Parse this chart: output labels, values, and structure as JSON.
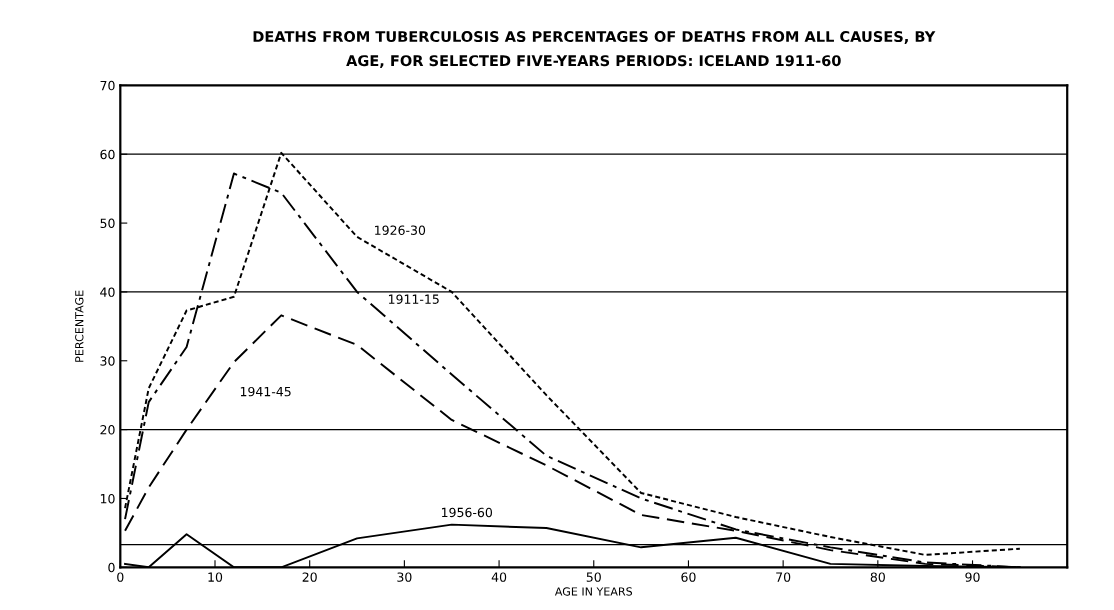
{
  "chart_data": {
    "type": "line",
    "title": "DEATHS FROM TUBERCULOSIS AS PERCENTAGES OF DEATHS FROM ALL CAUSES, BY\nAGE, FOR SELECTED FIVE-YEARS PERIODS: ICELAND 1911-60",
    "xlabel": "AGE IN YEARS",
    "ylabel": "PERCENTAGE",
    "x": [
      0.5,
      3,
      7,
      12,
      17,
      25,
      35,
      45,
      55,
      65,
      75,
      85,
      95
    ],
    "series": [
      {
        "name": "1926-30",
        "color": "#000000",
        "line_style": "dotted",
        "values": [
          8.6,
          26,
          37.3,
          39.3,
          60.2,
          48,
          40,
          25,
          10.8,
          7.3,
          4.4,
          1.8,
          2.7
        ]
      },
      {
        "name": "1911-15",
        "color": "#000000",
        "line_style": "dashdot",
        "values": [
          7,
          24,
          32,
          57.2,
          54.4,
          40,
          28,
          16.2,
          10,
          5.5,
          2.9,
          0.7,
          0
        ]
      },
      {
        "name": "1941-45",
        "color": "#000000",
        "line_style": "dashed",
        "values": [
          5.3,
          11.6,
          20,
          29.8,
          36.6,
          32.3,
          21.4,
          14.8,
          7.6,
          5.3,
          2.5,
          0.5,
          0
        ]
      },
      {
        "name": "1956-60",
        "color": "#000000",
        "line_style": "solid",
        "values": [
          0.5,
          0,
          4.8,
          0,
          0,
          4.2,
          6.2,
          5.7,
          2.9,
          4.3,
          0.5,
          0.2,
          0
        ]
      }
    ],
    "xlim": [
      0,
      100
    ],
    "ylim": [
      0,
      70
    ],
    "xticks": [
      0,
      10,
      20,
      30,
      40,
      50,
      60,
      70,
      80,
      90
    ],
    "yticks": [
      0,
      10,
      20,
      30,
      40,
      50,
      60,
      70
    ],
    "ref_lines": [
      {
        "axis": "y",
        "value": 3.3,
        "color": "#000000"
      },
      {
        "axis": "y",
        "value": 20,
        "color": "#000000"
      },
      {
        "axis": "y",
        "value": 40,
        "color": "#000000"
      },
      {
        "axis": "y",
        "value": 60,
        "color": "#000000"
      }
    ],
    "grid": false,
    "legend": false,
    "marker": "none"
  }
}
